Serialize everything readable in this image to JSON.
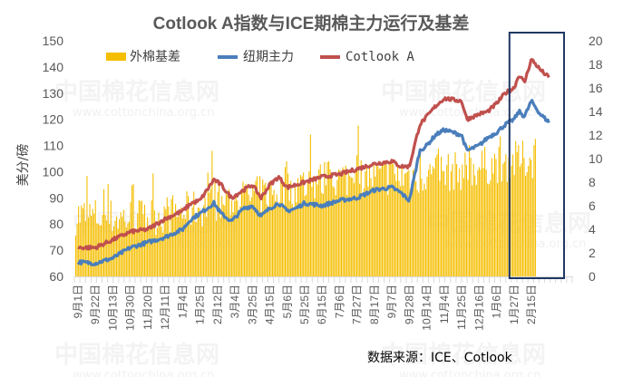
{
  "chart_data": {
    "type": "bar+line",
    "title": "Cotlook A指数与ICE期棉主力运行及基差",
    "ylabel": "美分/磅",
    "source": "数据来源：ICE、Cotlook",
    "watermark": "中国棉花信息网",
    "watermark_url": "www.cottonchina.org.cn",
    "left_axis": {
      "ylim": [
        60,
        150
      ],
      "ticks": [
        60,
        70,
        80,
        90,
        100,
        110,
        120,
        130,
        140,
        150
      ]
    },
    "right_axis": {
      "ylim": [
        0,
        20
      ],
      "ticks": [
        0,
        2,
        4,
        6,
        8,
        10,
        12,
        14,
        16,
        18,
        20
      ]
    },
    "x_tick_labels": [
      "9月1日",
      "9月22日",
      "10月13日",
      "10月30日",
      "11月20日",
      "12月11日",
      "1月4日",
      "1月25日",
      "2月12日",
      "3月4日",
      "3月25日",
      "4月15日",
      "5月6日",
      "5月25日",
      "6月15日",
      "7月6日",
      "7月27日",
      "8月17日",
      "9月7日",
      "9月28日",
      "10月14日",
      "11月4日",
      "11月25日",
      "12月16日",
      "1月6日",
      "1月27日",
      "2月15日"
    ],
    "series": [
      {
        "name": "外棉基差",
        "kind": "bar",
        "axis": "right",
        "color": "#F5BE00",
        "anchors": [
          [
            0,
            5.0
          ],
          [
            2,
            4.8
          ],
          [
            4,
            4.9
          ],
          [
            6,
            5.3
          ],
          [
            8,
            6.0
          ],
          [
            10,
            6.6
          ],
          [
            12,
            7.2
          ],
          [
            14,
            8.0
          ],
          [
            16,
            8.3
          ],
          [
            18,
            8.3
          ],
          [
            20,
            8.5
          ],
          [
            22,
            8.8
          ],
          [
            24,
            9.4
          ],
          [
            26,
            9.8
          ],
          [
            27,
            10.5
          ]
        ]
      },
      {
        "name": "纽期主力",
        "kind": "line",
        "axis": "left",
        "color": "#4A7EBB",
        "anchors": [
          [
            0,
            65.5
          ],
          [
            1,
            65
          ],
          [
            2,
            67
          ],
          [
            3,
            71
          ],
          [
            4,
            73
          ],
          [
            5,
            75
          ],
          [
            6,
            78
          ],
          [
            6.5,
            82
          ],
          [
            7,
            84
          ],
          [
            7.8,
            88
          ],
          [
            8.2,
            84
          ],
          [
            8.8,
            81
          ],
          [
            9.5,
            86
          ],
          [
            10,
            87
          ],
          [
            10.5,
            83
          ],
          [
            11,
            86
          ],
          [
            11.5,
            88
          ],
          [
            12,
            85
          ],
          [
            12.5,
            86
          ],
          [
            13,
            88
          ],
          [
            14,
            87
          ],
          [
            15,
            89
          ],
          [
            16,
            90
          ],
          [
            17,
            93
          ],
          [
            18,
            94
          ],
          [
            18.5,
            92
          ],
          [
            19,
            89
          ],
          [
            19.6,
            108
          ],
          [
            20,
            110
          ],
          [
            20.5,
            114
          ],
          [
            21,
            116
          ],
          [
            22,
            114
          ],
          [
            22.3,
            108
          ],
          [
            23,
            110
          ],
          [
            23.5,
            113
          ],
          [
            24,
            115
          ],
          [
            24.5,
            118
          ],
          [
            25,
            120
          ],
          [
            25.3,
            123
          ],
          [
            25.6,
            121
          ],
          [
            26,
            127
          ],
          [
            26.5,
            122
          ],
          [
            27,
            119
          ]
        ]
      },
      {
        "name": "Cotlook A",
        "kind": "line",
        "axis": "left",
        "color": "#C0504D",
        "anchors": [
          [
            0,
            71
          ],
          [
            1,
            71
          ],
          [
            2,
            74
          ],
          [
            3,
            77
          ],
          [
            4,
            78
          ],
          [
            5,
            82
          ],
          [
            6,
            85
          ],
          [
            6.5,
            88
          ],
          [
            7,
            89
          ],
          [
            7.8,
            97
          ],
          [
            8.2,
            95
          ],
          [
            8.8,
            90
          ],
          [
            9.5,
            93
          ],
          [
            10,
            95
          ],
          [
            10.5,
            90
          ],
          [
            11,
            95
          ],
          [
            11.5,
            98
          ],
          [
            12,
            94
          ],
          [
            12.5,
            95
          ],
          [
            13,
            96
          ],
          [
            14,
            98
          ],
          [
            15,
            99
          ],
          [
            16,
            101
          ],
          [
            17,
            103
          ],
          [
            18,
            104
          ],
          [
            18.5,
            102
          ],
          [
            19,
            102
          ],
          [
            19.6,
            118
          ],
          [
            20,
            121
          ],
          [
            20.5,
            125
          ],
          [
            21,
            128
          ],
          [
            22,
            127
          ],
          [
            22.3,
            120
          ],
          [
            23,
            122
          ],
          [
            23.5,
            123
          ],
          [
            24,
            126
          ],
          [
            24.5,
            130
          ],
          [
            25,
            132
          ],
          [
            25.3,
            137
          ],
          [
            25.6,
            134
          ],
          [
            26,
            143
          ],
          [
            26.5,
            139
          ],
          [
            27,
            136
          ]
        ]
      }
    ],
    "highlight": {
      "from_category": "1月27日",
      "to_category": "2月15日",
      "color": "#1F3864"
    },
    "grid": false,
    "legend_position": "top"
  }
}
